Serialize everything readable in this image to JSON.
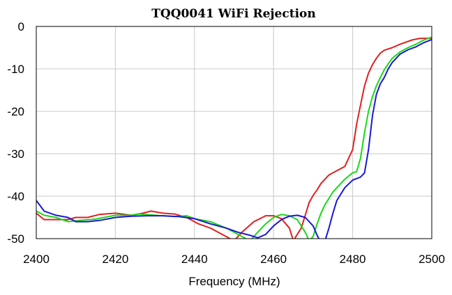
{
  "chart_data": {
    "type": "line",
    "title": "TQQ0041 WiFi Rejection",
    "xlabel": "Frequency (MHz)",
    "ylabel": "",
    "xlim": [
      2400,
      2500
    ],
    "ylim": [
      -50,
      0
    ],
    "grid": true,
    "legend": "none",
    "x_ticks": [
      "2400",
      "2420",
      "2440",
      "2460",
      "2480",
      "2500"
    ],
    "y_ticks": [
      "0",
      "-10",
      "-20",
      "-30",
      "-40",
      "-50"
    ],
    "series": [
      {
        "color": "#e02020",
        "x": [
          2400,
          2402,
          2405,
          2408,
          2410,
          2413,
          2416,
          2420,
          2424,
          2427,
          2429,
          2432,
          2435,
          2438,
          2441,
          2444,
          2447,
          2450,
          2452,
          2455,
          2458,
          2460,
          2462,
          2464,
          2465,
          2466,
          2467,
          2468,
          2469,
          2470,
          2471,
          2472,
          2474,
          2476,
          2478,
          2480,
          2481,
          2482,
          2483,
          2484,
          2485,
          2486,
          2487,
          2488,
          2490,
          2492,
          2495,
          2497,
          2500
        ],
        "y": [
          -44,
          -45.5,
          -45.5,
          -45.5,
          -45,
          -45,
          -44.3,
          -44,
          -44.5,
          -44,
          -43.5,
          -44,
          -44.2,
          -45,
          -46.5,
          -47.5,
          -49,
          -50.5,
          -48.5,
          -46,
          -44.6,
          -44.6,
          -45.3,
          -47.5,
          -50.5,
          -49,
          -47.5,
          -44.5,
          -41.5,
          -39.8,
          -38.5,
          -37,
          -35,
          -34,
          -33,
          -29,
          -23,
          -18.5,
          -14,
          -11,
          -9,
          -7.5,
          -6.3,
          -5.6,
          -5,
          -4.2,
          -3.2,
          -2.8,
          -2.8
        ]
      },
      {
        "color": "#18d818",
        "x": [
          2400,
          2402,
          2405,
          2408,
          2411,
          2415,
          2420,
          2424,
          2426,
          2430,
          2435,
          2438,
          2440,
          2444,
          2448,
          2451,
          2454,
          2456,
          2458,
          2460,
          2462,
          2464,
          2466,
          2467,
          2468,
          2469,
          2470,
          2471,
          2472,
          2473,
          2474,
          2475,
          2476,
          2478,
          2480,
          2481,
          2482,
          2483,
          2484,
          2485,
          2486,
          2487,
          2488,
          2489,
          2490,
          2492,
          2494,
          2496,
          2498,
          2500
        ],
        "y": [
          -43.5,
          -44.5,
          -45,
          -46,
          -45.7,
          -45.4,
          -44.5,
          -44.5,
          -44.2,
          -44.5,
          -44.8,
          -44.6,
          -45.3,
          -46,
          -47.5,
          -49,
          -50.5,
          -48.5,
          -46.5,
          -45,
          -44.3,
          -44.6,
          -45.5,
          -47,
          -48.5,
          -50.5,
          -49.5,
          -46.5,
          -44,
          -42,
          -40.5,
          -39,
          -38,
          -36,
          -34.5,
          -34.2,
          -31,
          -25,
          -20,
          -16.5,
          -14,
          -12,
          -10.2,
          -8.8,
          -7.5,
          -6,
          -5,
          -4.2,
          -3.2,
          -2.5
        ]
      },
      {
        "color": "#1818d8",
        "x": [
          2400,
          2402,
          2405,
          2408,
          2410,
          2413,
          2416,
          2420,
          2424,
          2428,
          2432,
          2436,
          2440,
          2444,
          2448,
          2451,
          2454,
          2456,
          2458,
          2460,
          2462,
          2464,
          2466,
          2468,
          2470,
          2471,
          2472,
          2473,
          2474,
          2475,
          2476,
          2478,
          2480,
          2482,
          2483,
          2484,
          2485,
          2486,
          2487,
          2488,
          2489,
          2490,
          2492,
          2494,
          2496,
          2498,
          2500
        ],
        "y": [
          -41,
          -43.5,
          -44.5,
          -45,
          -46,
          -46,
          -45.7,
          -45,
          -44.7,
          -44.6,
          -44.6,
          -44.8,
          -45.3,
          -46.5,
          -47.5,
          -48.5,
          -49.2,
          -49.8,
          -49,
          -47,
          -45.5,
          -44.7,
          -44.5,
          -45,
          -47,
          -49.2,
          -51,
          -50.5,
          -47.5,
          -44,
          -41,
          -38,
          -36.2,
          -35.5,
          -34.5,
          -29,
          -21,
          -16,
          -13.5,
          -12,
          -10,
          -8.5,
          -6.5,
          -5.5,
          -4.8,
          -3.8,
          -3.1
        ]
      }
    ]
  }
}
